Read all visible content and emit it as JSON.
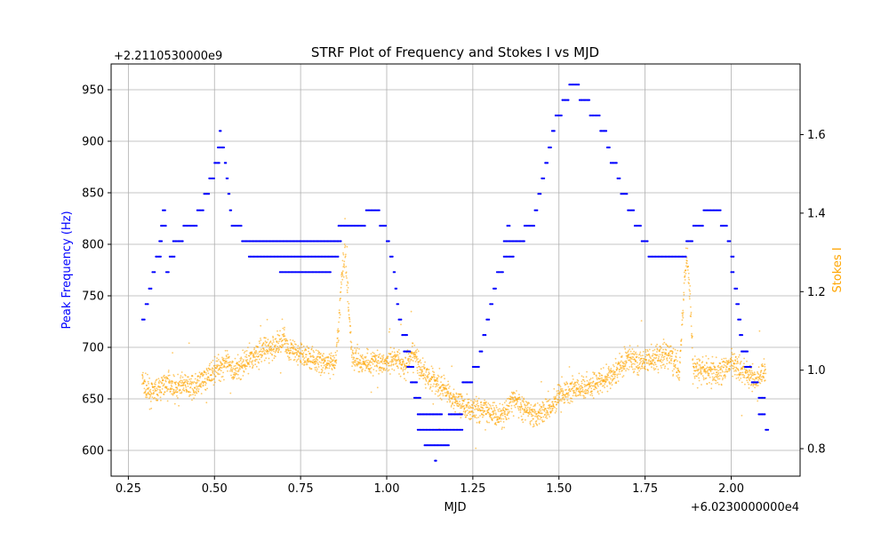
{
  "chart_data": {
    "type": "scatter",
    "title": "STRF Plot of Frequency and Stokes I vs MJD",
    "xlabel": "MJD",
    "x_offset_label": "+6.0230000000e4",
    "xlim": [
      0.2,
      2.2
    ],
    "x_ticks": [
      0.25,
      0.5,
      0.75,
      1.0,
      1.25,
      1.5,
      1.75,
      2.0
    ],
    "x_tick_labels": [
      "0.25",
      "0.50",
      "0.75",
      "1.00",
      "1.25",
      "1.50",
      "1.75",
      "2.00"
    ],
    "grid": true,
    "left_axis": {
      "label": "Peak Frequency (Hz)",
      "color": "#0000ff",
      "offset_label": "+2.2110530000e9",
      "ylim": [
        575,
        975
      ],
      "ticks": [
        600,
        650,
        700,
        750,
        800,
        850,
        900,
        950
      ],
      "tick_labels": [
        "600",
        "650",
        "700",
        "750",
        "800",
        "850",
        "900",
        "950"
      ]
    },
    "right_axis": {
      "label": "Stokes I",
      "color": "#ffa500",
      "ylim": [
        0.73,
        1.78
      ],
      "ticks": [
        0.8,
        1.0,
        1.2,
        1.4,
        1.6
      ],
      "tick_labels": [
        "0.8",
        "1.0",
        "1.2",
        "1.4",
        "1.6"
      ]
    },
    "series": [
      {
        "axis": "left",
        "color": "#0000ff",
        "marker": "dot",
        "segments": [
          {
            "x": [
              0.29,
              0.3
            ],
            "y": 727
          },
          {
            "x": [
              0.3,
              0.31
            ],
            "y": 742
          },
          {
            "x": [
              0.31,
              0.32
            ],
            "y": 757
          },
          {
            "x": [
              0.32,
              0.33
            ],
            "y": 773
          },
          {
            "x": [
              0.33,
              0.345
            ],
            "y": 788
          },
          {
            "x": [
              0.34,
              0.35
            ],
            "y": 803
          },
          {
            "x": [
              0.345,
              0.36
            ],
            "y": 818
          },
          {
            "x": [
              0.35,
              0.36
            ],
            "y": 833
          },
          {
            "x": [
              0.36,
              0.37
            ],
            "y": 773
          },
          {
            "x": [
              0.37,
              0.385
            ],
            "y": 788
          },
          {
            "x": [
              0.38,
              0.41
            ],
            "y": 803
          },
          {
            "x": [
              0.41,
              0.45
            ],
            "y": 818
          },
          {
            "x": [
              0.45,
              0.47
            ],
            "y": 833
          },
          {
            "x": [
              0.47,
              0.485
            ],
            "y": 849
          },
          {
            "x": [
              0.485,
              0.5
            ],
            "y": 864
          },
          {
            "x": [
              0.5,
              0.515
            ],
            "y": 879
          },
          {
            "x": [
              0.51,
              0.53
            ],
            "y": 894
          },
          {
            "x": [
              0.515,
              0.52
            ],
            "y": 910
          },
          {
            "x": [
              0.53,
              0.535
            ],
            "y": 879
          },
          {
            "x": [
              0.535,
              0.54
            ],
            "y": 864
          },
          {
            "x": [
              0.54,
              0.545
            ],
            "y": 849
          },
          {
            "x": [
              0.545,
              0.55
            ],
            "y": 833
          },
          {
            "x": [
              0.55,
              0.58
            ],
            "y": 818
          },
          {
            "x": [
              0.58,
              0.87
            ],
            "y": 803
          },
          {
            "x": [
              0.6,
              0.86
            ],
            "y": 788
          },
          {
            "x": [
              0.69,
              0.84
            ],
            "y": 773
          },
          {
            "x": [
              0.86,
              0.94
            ],
            "y": 818
          },
          {
            "x": [
              0.94,
              0.98
            ],
            "y": 833
          },
          {
            "x": [
              0.98,
              1.0
            ],
            "y": 818
          },
          {
            "x": [
              1.0,
              1.01
            ],
            "y": 803
          },
          {
            "x": [
              1.01,
              1.02
            ],
            "y": 788
          },
          {
            "x": [
              1.02,
              1.025
            ],
            "y": 773
          },
          {
            "x": [
              1.025,
              1.03
            ],
            "y": 757
          },
          {
            "x": [
              1.03,
              1.035
            ],
            "y": 742
          },
          {
            "x": [
              1.035,
              1.045
            ],
            "y": 727
          },
          {
            "x": [
              1.045,
              1.06
            ],
            "y": 712
          },
          {
            "x": [
              1.05,
              1.07
            ],
            "y": 696
          },
          {
            "x": [
              1.06,
              1.08
            ],
            "y": 681
          },
          {
            "x": [
              1.07,
              1.09
            ],
            "y": 666
          },
          {
            "x": [
              1.08,
              1.1
            ],
            "y": 651
          },
          {
            "x": [
              1.09,
              1.16
            ],
            "y": 635
          },
          {
            "x": [
              1.09,
              1.22
            ],
            "y": 620
          },
          {
            "x": [
              1.11,
              1.18
            ],
            "y": 605
          },
          {
            "x": [
              1.14,
              1.145
            ],
            "y": 590
          },
          {
            "x": [
              1.18,
              1.22
            ],
            "y": 635
          },
          {
            "x": [
              1.22,
              1.25
            ],
            "y": 666
          },
          {
            "x": [
              1.25,
              1.27
            ],
            "y": 681
          },
          {
            "x": [
              1.27,
              1.28
            ],
            "y": 696
          },
          {
            "x": [
              1.28,
              1.29
            ],
            "y": 712
          },
          {
            "x": [
              1.29,
              1.3
            ],
            "y": 727
          },
          {
            "x": [
              1.3,
              1.31
            ],
            "y": 742
          },
          {
            "x": [
              1.31,
              1.32
            ],
            "y": 757
          },
          {
            "x": [
              1.32,
              1.34
            ],
            "y": 773
          },
          {
            "x": [
              1.34,
              1.37
            ],
            "y": 788
          },
          {
            "x": [
              1.34,
              1.4
            ],
            "y": 803
          },
          {
            "x": [
              1.35,
              1.36
            ],
            "y": 818
          },
          {
            "x": [
              1.4,
              1.43
            ],
            "y": 818
          },
          {
            "x": [
              1.43,
              1.44
            ],
            "y": 833
          },
          {
            "x": [
              1.44,
              1.45
            ],
            "y": 849
          },
          {
            "x": [
              1.45,
              1.46
            ],
            "y": 864
          },
          {
            "x": [
              1.46,
              1.47
            ],
            "y": 879
          },
          {
            "x": [
              1.47,
              1.48
            ],
            "y": 894
          },
          {
            "x": [
              1.48,
              1.49
            ],
            "y": 910
          },
          {
            "x": [
              1.49,
              1.51
            ],
            "y": 925
          },
          {
            "x": [
              1.51,
              1.53
            ],
            "y": 940
          },
          {
            "x": [
              1.53,
              1.56
            ],
            "y": 955
          },
          {
            "x": [
              1.56,
              1.59
            ],
            "y": 940
          },
          {
            "x": [
              1.59,
              1.62
            ],
            "y": 925
          },
          {
            "x": [
              1.62,
              1.64
            ],
            "y": 910
          },
          {
            "x": [
              1.64,
              1.65
            ],
            "y": 894
          },
          {
            "x": [
              1.65,
              1.67
            ],
            "y": 879
          },
          {
            "x": [
              1.67,
              1.68
            ],
            "y": 864
          },
          {
            "x": [
              1.68,
              1.7
            ],
            "y": 849
          },
          {
            "x": [
              1.7,
              1.72
            ],
            "y": 833
          },
          {
            "x": [
              1.72,
              1.74
            ],
            "y": 818
          },
          {
            "x": [
              1.74,
              1.76
            ],
            "y": 803
          },
          {
            "x": [
              1.76,
              1.87
            ],
            "y": 788
          },
          {
            "x": [
              1.87,
              1.89
            ],
            "y": 803
          },
          {
            "x": [
              1.89,
              1.92
            ],
            "y": 818
          },
          {
            "x": [
              1.92,
              1.97
            ],
            "y": 833
          },
          {
            "x": [
              1.97,
              1.99
            ],
            "y": 818
          },
          {
            "x": [
              1.99,
              2.0
            ],
            "y": 803
          },
          {
            "x": [
              2.0,
              2.01
            ],
            "y": 788
          },
          {
            "x": [
              2.0,
              2.01
            ],
            "y": 773
          },
          {
            "x": [
              2.01,
              2.02
            ],
            "y": 757
          },
          {
            "x": [
              2.015,
              2.025
            ],
            "y": 742
          },
          {
            "x": [
              2.02,
              2.03
            ],
            "y": 727
          },
          {
            "x": [
              2.025,
              2.035
            ],
            "y": 712
          },
          {
            "x": [
              2.03,
              2.05
            ],
            "y": 696
          },
          {
            "x": [
              2.04,
              2.06
            ],
            "y": 681
          },
          {
            "x": [
              2.06,
              2.08
            ],
            "y": 666
          },
          {
            "x": [
              2.08,
              2.1
            ],
            "y": 651
          },
          {
            "x": [
              2.08,
              2.1
            ],
            "y": 635
          },
          {
            "x": [
              2.1,
              2.11
            ],
            "y": 620
          }
        ]
      },
      {
        "axis": "right",
        "color": "#ffa500",
        "marker": "dot",
        "x": [
          0.29,
          0.3,
          0.32,
          0.35,
          0.37,
          0.39,
          0.4,
          0.43,
          0.45,
          0.47,
          0.5,
          0.53,
          0.56,
          0.6,
          0.64,
          0.68,
          0.7,
          0.72,
          0.75,
          0.78,
          0.82,
          0.85,
          0.86,
          0.87,
          0.88,
          0.89,
          0.9,
          0.93,
          0.96,
          1.0,
          1.03,
          1.05,
          1.08,
          1.1,
          1.13,
          1.17,
          1.2,
          1.24,
          1.28,
          1.32,
          1.35,
          1.37,
          1.4,
          1.43,
          1.46,
          1.5,
          1.54,
          1.58,
          1.62,
          1.66,
          1.7,
          1.74,
          1.78,
          1.82,
          1.85,
          1.86,
          1.87,
          1.88,
          1.89,
          1.92,
          1.96,
          2.0,
          2.04,
          2.07,
          2.1
        ],
        "y": [
          0.98,
          0.95,
          0.94,
          0.96,
          0.97,
          0.95,
          0.96,
          0.96,
          0.96,
          0.97,
          1.0,
          1.02,
          1.0,
          1.03,
          1.05,
          1.06,
          1.08,
          1.05,
          1.04,
          1.03,
          1.02,
          1.01,
          1.1,
          1.25,
          1.3,
          1.15,
          1.03,
          1.02,
          1.02,
          1.02,
          1.03,
          1.01,
          1.04,
          1.0,
          0.98,
          0.95,
          0.92,
          0.9,
          0.9,
          0.88,
          0.9,
          0.93,
          0.9,
          0.89,
          0.9,
          0.93,
          0.95,
          0.96,
          0.97,
          0.99,
          1.03,
          1.02,
          1.03,
          1.04,
          1.0,
          1.15,
          1.3,
          1.2,
          1.0,
          1.0,
          0.99,
          1.02,
          1.0,
          0.97,
          1.0
        ]
      }
    ]
  }
}
